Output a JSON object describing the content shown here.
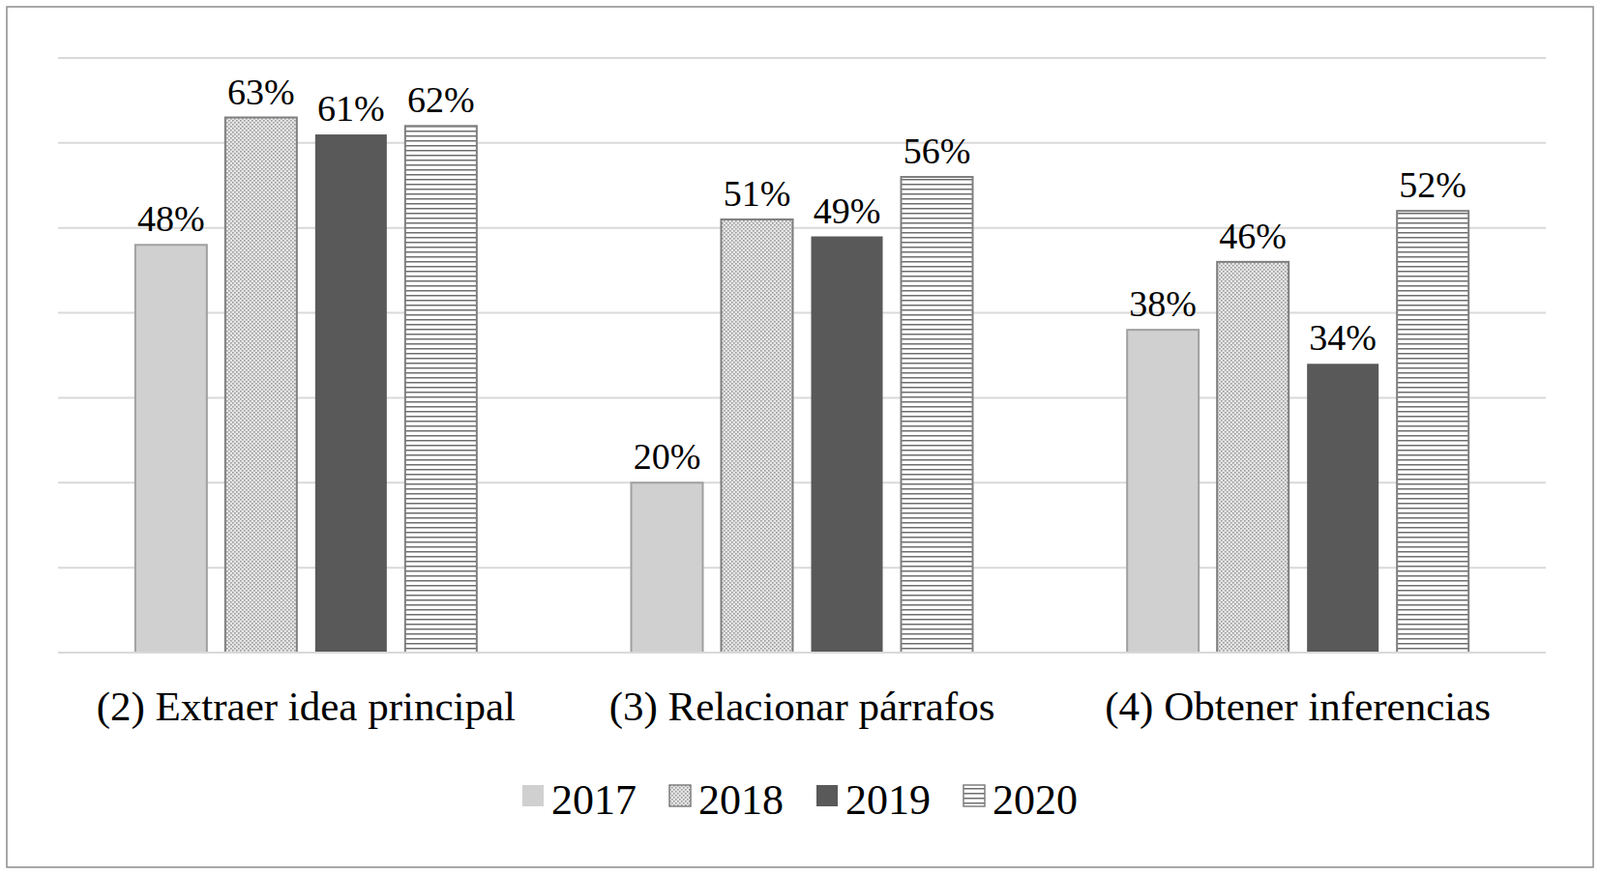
{
  "chart_data": {
    "type": "bar",
    "categories": [
      "(2) Extraer idea principal",
      "(3) Relacionar párrafos",
      "(4) Obtener inferencias"
    ],
    "series": [
      {
        "name": "2017",
        "color": "#d0d0d0",
        "values": [
          48,
          20,
          38
        ],
        "value_labels": [
          "48%",
          "20%",
          "38%"
        ]
      },
      {
        "name": "2018",
        "color": "#9a9a9a",
        "values": [
          63,
          51,
          46
        ],
        "value_labels": [
          "63%",
          "51%",
          "46%"
        ]
      },
      {
        "name": "2019",
        "color": "#595959",
        "values": [
          61,
          49,
          34
        ],
        "value_labels": [
          "61%",
          "49%",
          "34%"
        ]
      },
      {
        "name": "2020",
        "color": "#6e6e6e",
        "values": [
          62,
          56,
          52
        ],
        "value_labels": [
          "62%",
          "56%",
          "52%"
        ]
      }
    ],
    "ylim": [
      0,
      70
    ],
    "yticks": [
      0,
      10,
      20,
      30,
      40,
      50,
      60,
      70
    ],
    "grid": true,
    "legend": "bottom",
    "data_labels": true,
    "tick_labels": "x"
  }
}
